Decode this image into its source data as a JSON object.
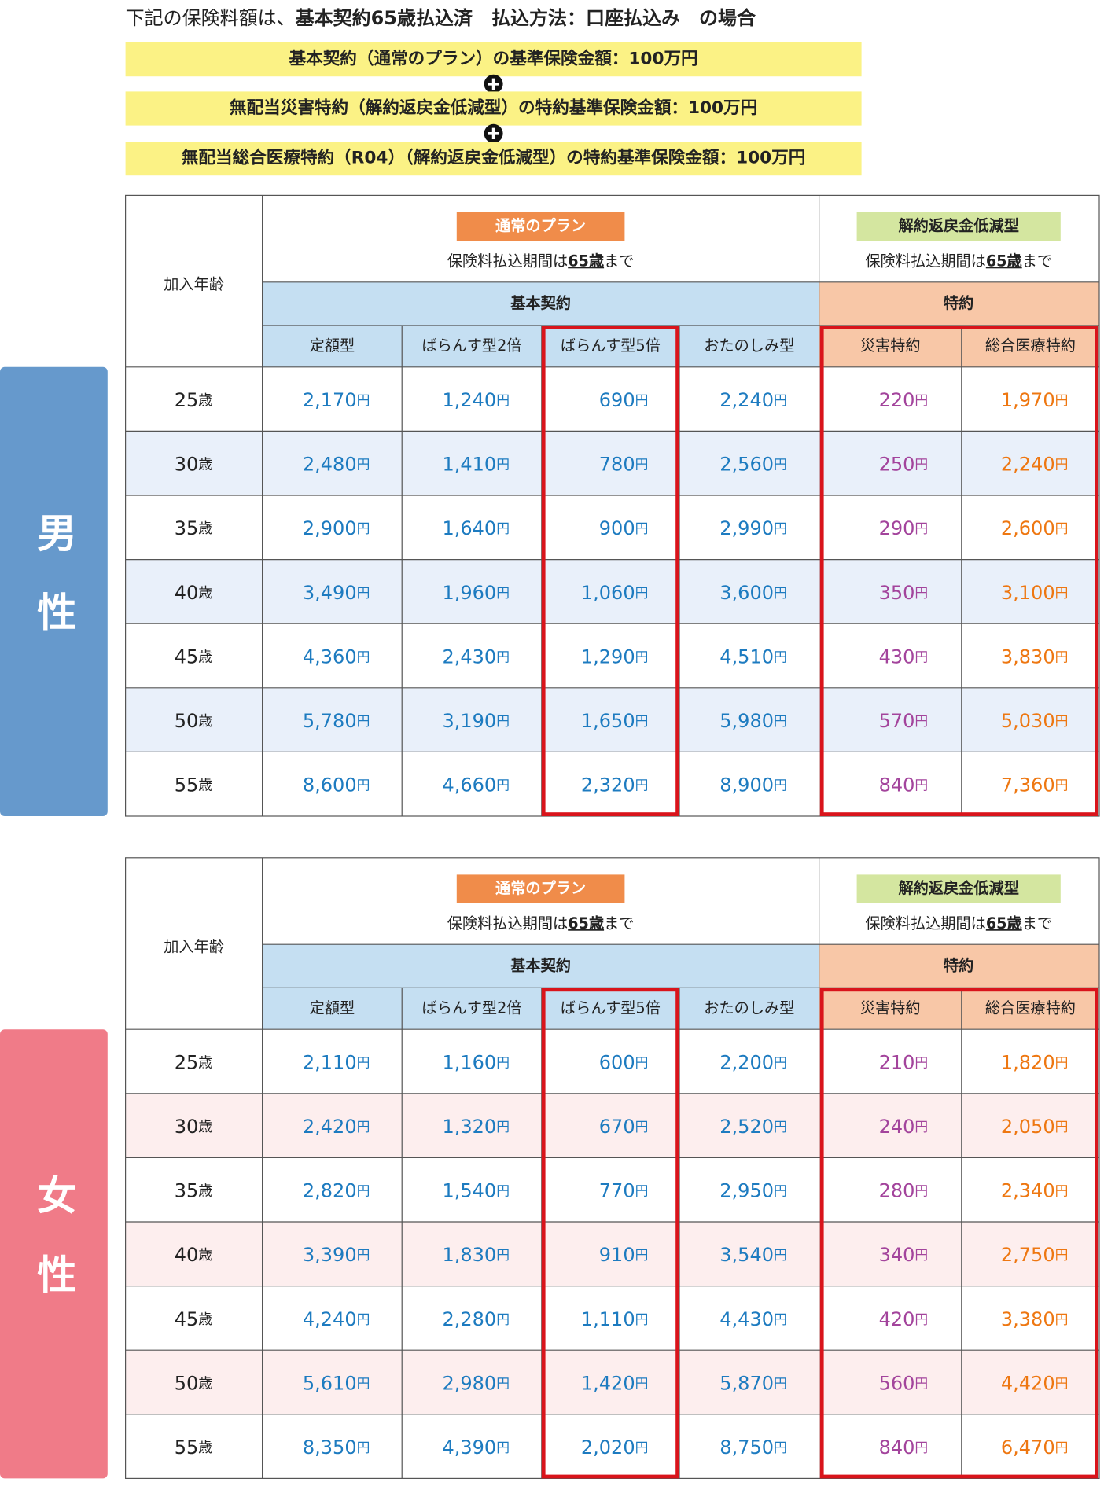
{
  "note": {
    "prefix": "下記の保険料額は、",
    "emphasis": "基本契約65歳払込済　払込方法：口座払込み　の場合"
  },
  "conditions": [
    "基本契約（通常のプラン）の基準保険金額：100万円",
    "無配当災害特約（解約返戻金低減型）の特約基準保険金額：100万円",
    "無配当総合医療特約（R04）（解約返戻金低減型）の特約基準保険金額：100万円"
  ],
  "tables": [
    {
      "gender": "男性",
      "age_header": "加入年齢",
      "plan_groups": [
        {
          "label": "通常のプラン",
          "period": {
            "before": "保険料払込期間は",
            "emphasis": "65歳",
            "after": "まで"
          }
        },
        {
          "label": "解約返戻金低減型",
          "period": {
            "before": "保険料払込期間は",
            "emphasis": "65歳",
            "after": "まで"
          }
        }
      ],
      "contract_groups": [
        "基本契約",
        "特約"
      ],
      "columns": [
        "定額型",
        "ばらんす型2倍",
        "ばらんす型5倍",
        "おたのしみ型",
        "災害特約",
        "総合医療特約"
      ],
      "age_unit": "歳",
      "currency_unit": "円",
      "rows": [
        {
          "age": "25",
          "premiums": [
            "2,170",
            "1,240",
            "690",
            "2,240",
            "220",
            "1,970"
          ]
        },
        {
          "age": "30",
          "premiums": [
            "2,480",
            "1,410",
            "780",
            "2,560",
            "250",
            "2,240"
          ]
        },
        {
          "age": "35",
          "premiums": [
            "2,900",
            "1,640",
            "900",
            "2,990",
            "290",
            "2,600"
          ]
        },
        {
          "age": "40",
          "premiums": [
            "3,490",
            "1,960",
            "1,060",
            "3,600",
            "350",
            "3,100"
          ]
        },
        {
          "age": "45",
          "premiums": [
            "4,360",
            "2,430",
            "1,290",
            "4,510",
            "430",
            "3,830"
          ]
        },
        {
          "age": "50",
          "premiums": [
            "5,780",
            "3,190",
            "1,650",
            "5,980",
            "570",
            "5,030"
          ]
        },
        {
          "age": "55",
          "premiums": [
            "8,600",
            "4,660",
            "2,320",
            "8,900",
            "840",
            "7,360"
          ]
        }
      ]
    },
    {
      "gender": "女性",
      "age_header": "加入年齢",
      "plan_groups": [
        {
          "label": "通常のプラン",
          "period": {
            "before": "保険料払込期間は",
            "emphasis": "65歳",
            "after": "まで"
          }
        },
        {
          "label": "解約返戻金低減型",
          "period": {
            "before": "保険料払込期間は",
            "emphasis": "65歳",
            "after": "まで"
          }
        }
      ],
      "contract_groups": [
        "基本契約",
        "特約"
      ],
      "columns": [
        "定額型",
        "ばらんす型2倍",
        "ばらんす型5倍",
        "おたのしみ型",
        "災害特約",
        "総合医療特約"
      ],
      "age_unit": "歳",
      "currency_unit": "円",
      "rows": [
        {
          "age": "25",
          "premiums": [
            "2,110",
            "1,160",
            "600",
            "2,200",
            "210",
            "1,820"
          ]
        },
        {
          "age": "30",
          "premiums": [
            "2,420",
            "1,320",
            "670",
            "2,520",
            "240",
            "2,050"
          ]
        },
        {
          "age": "35",
          "premiums": [
            "2,820",
            "1,540",
            "770",
            "2,950",
            "280",
            "2,340"
          ]
        },
        {
          "age": "40",
          "premiums": [
            "3,390",
            "1,830",
            "910",
            "3,540",
            "340",
            "2,750"
          ]
        },
        {
          "age": "45",
          "premiums": [
            "4,240",
            "2,280",
            "1,110",
            "4,430",
            "420",
            "3,380"
          ]
        },
        {
          "age": "50",
          "premiums": [
            "5,610",
            "2,980",
            "1,420",
            "5,870",
            "560",
            "4,420"
          ]
        },
        {
          "age": "55",
          "premiums": [
            "8,350",
            "4,390",
            "2,020",
            "8,750",
            "840",
            "6,470"
          ]
        }
      ]
    }
  ]
}
